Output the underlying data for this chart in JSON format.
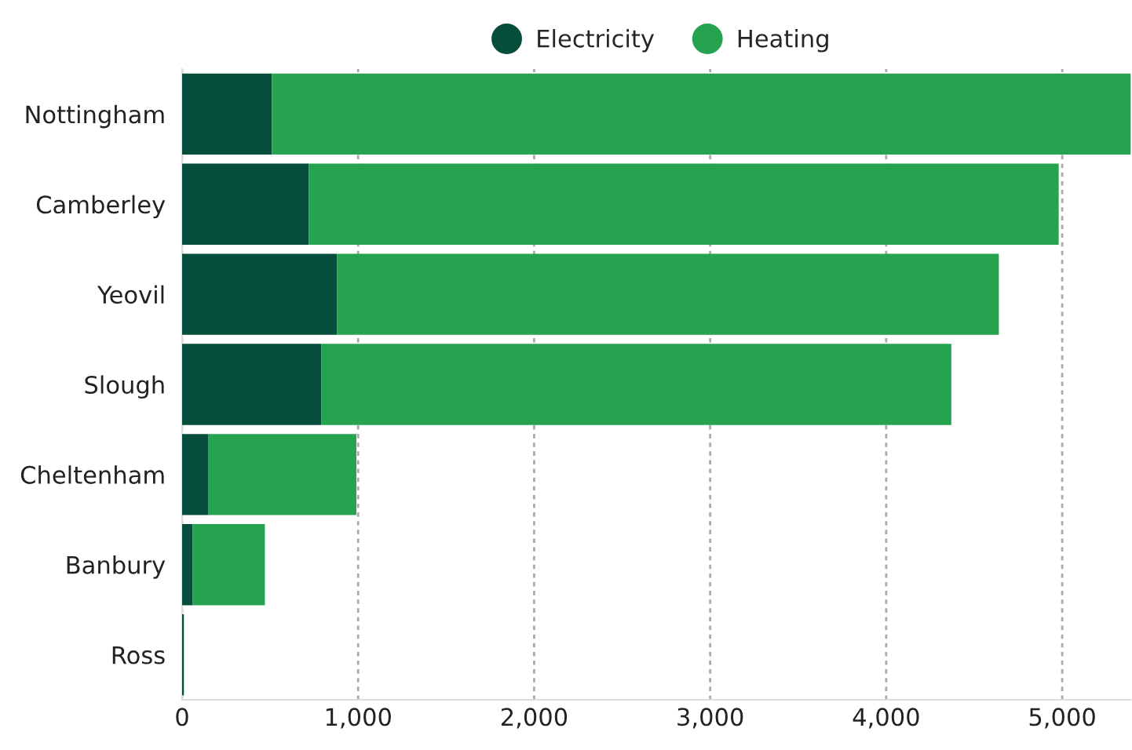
{
  "chart_data": {
    "type": "bar",
    "orientation": "horizontal",
    "stacked": true,
    "categories": [
      "Nottingham",
      "Camberley",
      "Yeovil",
      "Slough",
      "Cheltenham",
      "Banbury",
      "Ross"
    ],
    "series": [
      {
        "name": "Electricity",
        "color": "#074d3b",
        "values": [
          510,
          720,
          880,
          790,
          150,
          60,
          10
        ]
      },
      {
        "name": "Heating",
        "color": "#26a34f",
        "values": [
          4880,
          4260,
          3760,
          3580,
          840,
          410,
          0
        ]
      }
    ],
    "xlim": [
      0,
      5390
    ],
    "xticks": [
      {
        "value": 0,
        "label": "0"
      },
      {
        "value": 1000,
        "label": "1,000"
      },
      {
        "value": 2000,
        "label": "2,000"
      },
      {
        "value": 3000,
        "label": "3,000"
      },
      {
        "value": 4000,
        "label": "4,000"
      },
      {
        "value": 5000,
        "label": "5,000"
      }
    ],
    "grid": "x",
    "legend": "top"
  }
}
